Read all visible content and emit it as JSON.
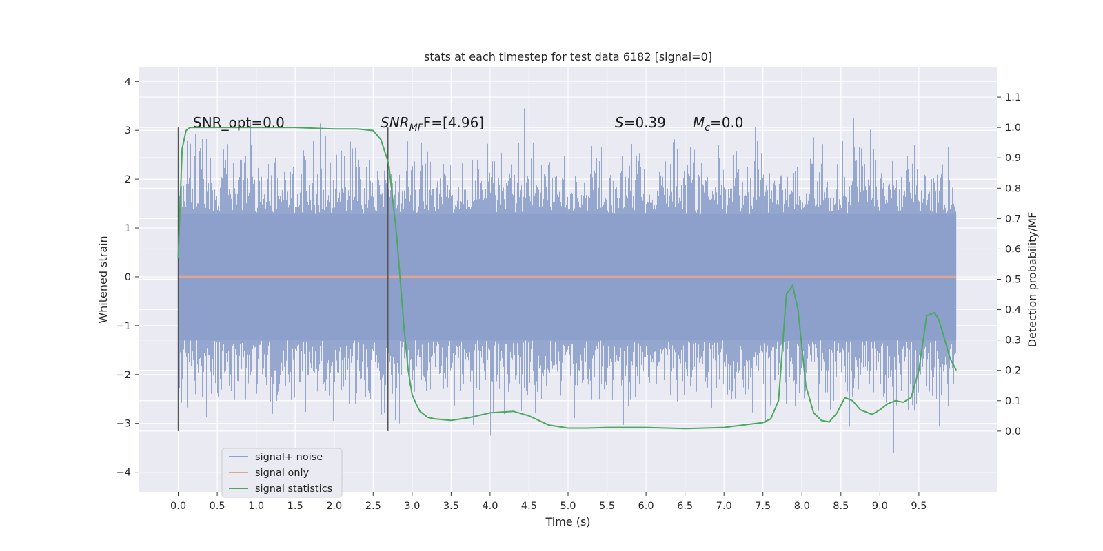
{
  "chart_data": {
    "type": "line",
    "title": "stats at each timestep for test data 6182 [signal=0]",
    "xlabel": "Time (s)",
    "ylabel": "Whitened strain",
    "y2label": "Detection probability/MF",
    "xlim": [
      -0.5,
      10.5
    ],
    "ylim": [
      -4.4,
      4.3
    ],
    "y2lim": [
      -0.2,
      1.2
    ],
    "xticks": [
      "0.0",
      "0.5",
      "1.0",
      "1.5",
      "2.0",
      "2.5",
      "3.0",
      "3.5",
      "4.0",
      "4.5",
      "5.0",
      "5.5",
      "6.0",
      "6.5",
      "7.0",
      "7.5",
      "8.0",
      "8.5",
      "9.0",
      "9.5"
    ],
    "yticks": [
      "4",
      "3",
      "2",
      "1",
      "0",
      "−1",
      "−2",
      "−3",
      "−4"
    ],
    "y2ticks": [
      "1.1",
      "1.0",
      "0.9",
      "0.8",
      "0.7",
      "0.6",
      "0.5",
      "0.4",
      "0.3",
      "0.2",
      "0.1",
      "0.0"
    ],
    "grid": true,
    "legend_position": "lower-left",
    "colors": {
      "noise": "#8da0cb",
      "signal": "#e8a58c",
      "stats": "#4ca85f",
      "background": "#eaeaf2",
      "vline": "#555555"
    },
    "annotations": {
      "snr_opt": "SNR_opt=0.0",
      "snr_mf_prefix": "SNR",
      "snr_mf_sub": "MF",
      "snr_mf_rest": "F=[4.96]",
      "s_prefix": "S",
      "s_rest": "=0.39",
      "mc_prefix": "M",
      "mc_sub": "c",
      "mc_rest": "=0.0"
    },
    "vertical_markers": [
      0.0,
      2.69
    ],
    "series": [
      {
        "name": "signal+ noise",
        "noise_band": {
          "x_range": [
            0.0,
            9.98
          ],
          "typical_abs": 1.3,
          "peak_abs": 3.9
        }
      },
      {
        "name": "signal only",
        "x": [
          0.0,
          9.98
        ],
        "y": [
          0.0,
          0.0
        ]
      },
      {
        "name": "signal statistics",
        "axis": "right",
        "x": [
          0.0,
          0.05,
          0.1,
          0.15,
          0.25,
          0.5,
          1.0,
          1.5,
          2.0,
          2.3,
          2.5,
          2.6,
          2.7,
          2.8,
          2.9,
          2.95,
          3.0,
          3.05,
          3.1,
          3.2,
          3.3,
          3.5,
          3.75,
          4.0,
          4.3,
          4.5,
          4.75,
          5.0,
          5.25,
          5.5,
          6.0,
          6.5,
          7.0,
          7.25,
          7.5,
          7.6,
          7.7,
          7.8,
          7.88,
          7.95,
          8.05,
          8.15,
          8.25,
          8.35,
          8.45,
          8.55,
          8.65,
          8.75,
          8.9,
          9.0,
          9.1,
          9.2,
          9.3,
          9.4,
          9.5,
          9.6,
          9.7,
          9.75,
          9.8,
          9.9,
          9.98
        ],
        "y": [
          0.57,
          0.93,
          0.99,
          1.0,
          1.0,
          1.0,
          1.0,
          1.0,
          0.995,
          0.995,
          0.99,
          0.96,
          0.88,
          0.65,
          0.33,
          0.2,
          0.12,
          0.09,
          0.065,
          0.045,
          0.04,
          0.035,
          0.045,
          0.06,
          0.065,
          0.05,
          0.02,
          0.01,
          0.01,
          0.012,
          0.012,
          0.008,
          0.012,
          0.02,
          0.028,
          0.04,
          0.1,
          0.45,
          0.48,
          0.4,
          0.15,
          0.06,
          0.035,
          0.03,
          0.06,
          0.11,
          0.1,
          0.07,
          0.055,
          0.07,
          0.09,
          0.1,
          0.095,
          0.11,
          0.2,
          0.38,
          0.39,
          0.37,
          0.33,
          0.24,
          0.2
        ]
      }
    ]
  }
}
